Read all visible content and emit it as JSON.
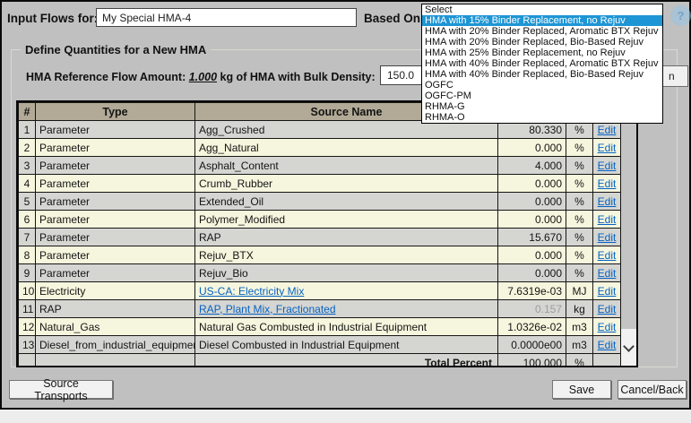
{
  "header": {
    "input_flows_label": "Input Flows for:",
    "flow_name": "My Special HMA-4",
    "based_on_label": "Based On:",
    "help_icon": "?"
  },
  "dropdown": {
    "items": [
      "Select",
      "HMA with 15% Binder Replacement, no Rejuv",
      "HMA with 20% Binder Replaced, Aromatic BTX Rejuv",
      "HMA with 20% Binder Replaced, Bio-Based Rejuv",
      "HMA with 25% Binder Replacement, no Rejuv",
      "HMA with 40% Binder Replaced, Aromatic BTX Rejuv",
      "HMA with 40% Binder Replaced, Bio-Based Rejuv",
      "OGFC",
      "OGFC-PM",
      "RHMA-G",
      "RHMA-O"
    ],
    "highlighted_index": 1,
    "highlight_color": "#1e95d4"
  },
  "quantities": {
    "legend": "Define Quantities for a New HMA",
    "ref_label": "HMA Reference Flow Amount:",
    "ref_amount": "1.000",
    "ref_suffix": "kg of HMA with Bulk Density:",
    "bulk_density": "150.0",
    "unit_button_partial": "n"
  },
  "table": {
    "columns": [
      "#",
      "Type",
      "Source Name"
    ],
    "edit_label": "Edit",
    "rows": [
      {
        "num": "1",
        "type": "Parameter",
        "source": "Agg_Crushed",
        "link": false,
        "value": "80.330",
        "unit": "%"
      },
      {
        "num": "2",
        "type": "Parameter",
        "source": "Agg_Natural",
        "link": false,
        "value": "0.000",
        "unit": "%"
      },
      {
        "num": "3",
        "type": "Parameter",
        "source": "Asphalt_Content",
        "link": false,
        "value": "4.000",
        "unit": "%"
      },
      {
        "num": "4",
        "type": "Parameter",
        "source": "Crumb_Rubber",
        "link": false,
        "value": "0.000",
        "unit": "%"
      },
      {
        "num": "5",
        "type": "Parameter",
        "source": "Extended_Oil",
        "link": false,
        "value": "0.000",
        "unit": "%"
      },
      {
        "num": "6",
        "type": "Parameter",
        "source": "Polymer_Modified",
        "link": false,
        "value": "0.000",
        "unit": "%"
      },
      {
        "num": "7",
        "type": "Parameter",
        "source": "RAP",
        "link": false,
        "value": "15.670",
        "unit": "%"
      },
      {
        "num": "8",
        "type": "Parameter",
        "source": "Rejuv_BTX",
        "link": false,
        "value": "0.000",
        "unit": "%"
      },
      {
        "num": "9",
        "type": "Parameter",
        "source": "Rejuv_Bio",
        "link": false,
        "value": "0.000",
        "unit": "%"
      },
      {
        "num": "10",
        "type": "Electricity",
        "source": "US-CA: Electricity Mix",
        "link": true,
        "value": "7.6319e-03",
        "unit": "MJ"
      },
      {
        "num": "11",
        "type": "RAP",
        "source": "RAP, Plant Mix, Fractionated",
        "link": true,
        "value": "0.157",
        "unit": "kg",
        "muted": true
      },
      {
        "num": "12",
        "type": "Natural_Gas",
        "source": "Natural Gas Combusted in Industrial Equipment",
        "link": false,
        "value": "1.0326e-02",
        "unit": "m3"
      },
      {
        "num": "13",
        "type": "Diesel_from_industrial_equipment",
        "source": "Diesel Combusted in Industrial Equipment",
        "link": false,
        "value": "0.0000e00",
        "unit": "m3"
      }
    ],
    "total": {
      "label": "Total Percent",
      "value": "100.000",
      "unit": "%"
    }
  },
  "footer": {
    "source_transports": "Source Transports",
    "save": "Save",
    "cancel": "Cancel/Back"
  },
  "colors": {
    "link": "#0563c1",
    "table_header_bg": "#b2aa96",
    "row_gray": "#d5d5d2",
    "row_yellow": "#f6f6de",
    "dropdown_highlight": "#1e95d4",
    "dialog_bg": "#c0c0c0"
  }
}
